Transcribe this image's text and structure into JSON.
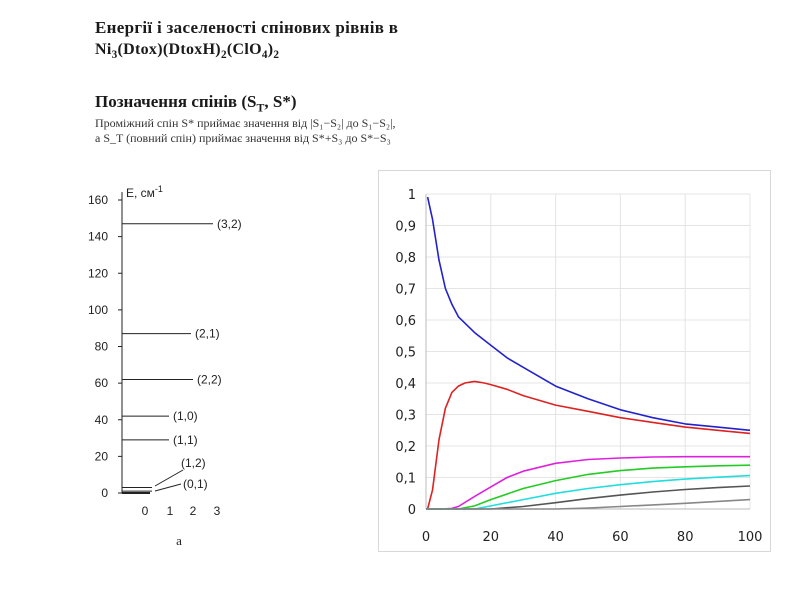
{
  "heading": {
    "line1": "Енергії і заселеності спінових рівнів в",
    "line2_prefix": "Ni",
    "line2_sub1": "3",
    "line2_mid": "(Dtox)(DtoxH)",
    "line2_sub2": "2",
    "line2_mid2": "(ClO",
    "line2_sub3": "4",
    "line2_end": ")",
    "line2_sub4": "2"
  },
  "subheading": {
    "prefix": "Позначення спінів (S",
    "sub": "T",
    "suffix": ", S*)"
  },
  "note": {
    "line1": "Проміжний спін S* приймає значення від |S₁−S₂| до S₁−S₂|,",
    "line2": "а S_T (повний спін) приймає значення від S*+S₃ до S*−S₃"
  },
  "chart_data": [
    {
      "type": "energy-level-diagram",
      "ylabel": "E, см",
      "ylabel_sup": "-1",
      "xlabel": "a",
      "ylim": [
        0,
        160
      ],
      "y_ticks": [
        0,
        20,
        40,
        60,
        80,
        100,
        120,
        140,
        160
      ],
      "x_tick_labels": [
        "0",
        "1",
        "2",
        "3"
      ],
      "levels": [
        {
          "label": "(3,2)",
          "energy": 147
        },
        {
          "label": "(2,1)",
          "energy": 87
        },
        {
          "label": "(2,2)",
          "energy": 62
        },
        {
          "label": "(1,0)",
          "energy": 42
        },
        {
          "label": "(1,1)",
          "energy": 29
        },
        {
          "label": "(1,2)",
          "energy": 3
        },
        {
          "label": "(0,1)",
          "energy": 1
        }
      ]
    },
    {
      "type": "line",
      "xlim": [
        0,
        100
      ],
      "ylim": [
        0,
        1
      ],
      "x_ticks": [
        0,
        20,
        40,
        60,
        80,
        100
      ],
      "y_ticks": [
        0,
        0.1,
        0.2,
        0.3,
        0.4,
        0.5,
        0.6,
        0.7,
        0.8,
        0.9,
        1
      ],
      "y_tick_labels": [
        "0",
        "0,1",
        "0,2",
        "0,3",
        "0,4",
        "0,5",
        "0,6",
        "0,7",
        "0,8",
        "0,9",
        "1"
      ],
      "grid": true,
      "series": [
        {
          "color": "#2222cc",
          "x": [
            0.5,
            2,
            4,
            6,
            8,
            10,
            15,
            20,
            25,
            30,
            40,
            50,
            60,
            70,
            80,
            90,
            100
          ],
          "y": [
            0.99,
            0.92,
            0.79,
            0.7,
            0.65,
            0.61,
            0.56,
            0.52,
            0.48,
            0.45,
            0.39,
            0.35,
            0.315,
            0.29,
            0.27,
            0.26,
            0.25
          ]
        },
        {
          "color": "#dd2222",
          "x": [
            0.5,
            2,
            4,
            6,
            8,
            10,
            12,
            15,
            18,
            20,
            25,
            30,
            40,
            50,
            60,
            70,
            80,
            90,
            100
          ],
          "y": [
            0.0,
            0.06,
            0.22,
            0.32,
            0.37,
            0.39,
            0.4,
            0.405,
            0.4,
            0.395,
            0.38,
            0.36,
            0.33,
            0.31,
            0.29,
            0.275,
            0.26,
            0.25,
            0.24
          ]
        },
        {
          "color": "#dd22dd",
          "x": [
            0,
            5,
            8,
            10,
            15,
            20,
            25,
            30,
            40,
            50,
            60,
            70,
            80,
            90,
            100
          ],
          "y": [
            0,
            0,
            0.002,
            0.008,
            0.04,
            0.07,
            0.1,
            0.12,
            0.145,
            0.157,
            0.162,
            0.165,
            0.166,
            0.166,
            0.166
          ]
        },
        {
          "color": "#22cc22",
          "x": [
            0,
            10,
            15,
            20,
            30,
            40,
            50,
            60,
            70,
            80,
            90,
            100
          ],
          "y": [
            0,
            0,
            0.01,
            0.03,
            0.065,
            0.09,
            0.11,
            0.122,
            0.13,
            0.134,
            0.137,
            0.139
          ]
        },
        {
          "color": "#22dddd",
          "x": [
            0,
            15,
            20,
            30,
            40,
            50,
            60,
            70,
            80,
            90,
            100
          ],
          "y": [
            0,
            0,
            0.01,
            0.03,
            0.05,
            0.065,
            0.077,
            0.087,
            0.095,
            0.101,
            0.106
          ]
        },
        {
          "color": "#555555",
          "x": [
            0,
            20,
            30,
            40,
            50,
            60,
            70,
            80,
            90,
            100
          ],
          "y": [
            0,
            0,
            0.008,
            0.02,
            0.033,
            0.044,
            0.054,
            0.062,
            0.068,
            0.073
          ]
        },
        {
          "color": "#888888",
          "x": [
            0,
            40,
            50,
            60,
            70,
            80,
            90,
            100
          ],
          "y": [
            0,
            0,
            0.003,
            0.008,
            0.013,
            0.018,
            0.024,
            0.03
          ]
        }
      ]
    }
  ]
}
